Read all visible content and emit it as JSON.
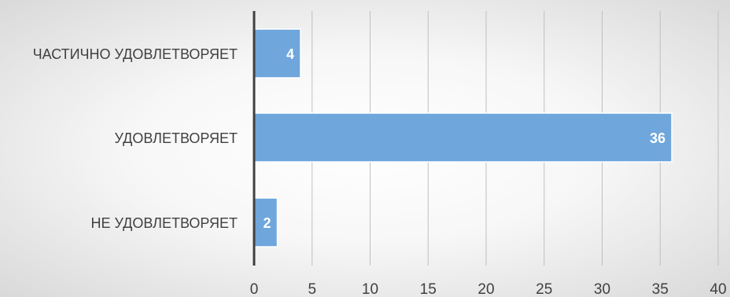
{
  "chart_data": {
    "type": "bar",
    "orientation": "horizontal",
    "categories": [
      "ЧАСТИЧНО УДОВЛЕТВОРЯЕТ",
      "УДОВЛЕТВОРЯЕТ",
      "НЕ УДОВЛЕТВОРЯЕТ"
    ],
    "values": [
      4,
      36,
      2
    ],
    "data_labels": [
      "4",
      "36",
      "2"
    ],
    "xlim": [
      0,
      40
    ],
    "xticks": [
      "0",
      "5",
      "10",
      "15",
      "20",
      "25",
      "30",
      "35",
      "40"
    ],
    "title": "",
    "xlabel": "",
    "ylabel": "",
    "grid": "vertical",
    "legend": "none",
    "colors": {
      "bar": "#6fa6dc",
      "bar_edge": "#ffffff",
      "grid": "#bfbfbf",
      "axis": "#404040",
      "tick_text": "#404040",
      "label_text": "#ffffff",
      "category_text": "#404040"
    }
  }
}
